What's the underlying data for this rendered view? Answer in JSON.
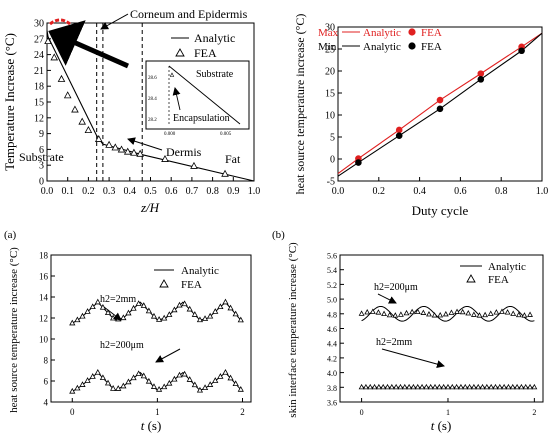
{
  "panel_labels": [
    "(a)",
    "(b)"
  ],
  "chart_data": [
    {
      "id": "tl",
      "type": "line",
      "xlabel": "z/H",
      "ylabel": "Temperature Increase (°C)",
      "xlim": [
        0.0,
        1.0
      ],
      "ylim": [
        0,
        30
      ],
      "xticks": [
        "0.0",
        "0.1",
        "0.2",
        "0.3",
        "0.4",
        "0.5",
        "0.6",
        "0.7",
        "0.8",
        "0.9",
        "1.0"
      ],
      "yticks": [
        "0",
        "3",
        "6",
        "9",
        "12",
        "15",
        "18",
        "21",
        "24",
        "27",
        "30"
      ],
      "legend": [
        "Analytic",
        "FEA"
      ],
      "legend_position": "top-right",
      "annotations": [
        "Corneum and Epidermis",
        "Substrate",
        "Dermis",
        "Fat",
        "Encapsulation",
        "Substrate"
      ],
      "region_boundaries": [
        0.24,
        0.27,
        0.46
      ],
      "inset": {
        "xticks": [
          "0.000",
          "0.005"
        ],
        "yticks": [
          "28.2",
          "28.4",
          "28.6"
        ]
      },
      "series": [
        {
          "name": "Analytic",
          "x": [
            0.0,
            0.005,
            0.24,
            0.27,
            0.46,
            1.0
          ],
          "y": [
            28.6,
            27.4,
            8.6,
            7.0,
            5.0,
            0
          ]
        },
        {
          "name": "FEA",
          "x": [
            0.005,
            0.035,
            0.07,
            0.1,
            0.135,
            0.17,
            0.2,
            0.25,
            0.3,
            0.33,
            0.36,
            0.39,
            0.42,
            0.45,
            0.57,
            0.71,
            0.86
          ],
          "y": [
            26.5,
            23.4,
            19.3,
            16.2,
            13.5,
            11.2,
            9.6,
            7.9,
            6.8,
            6.3,
            5.9,
            5.5,
            5.3,
            5.1,
            4.1,
            2.8,
            1.3
          ]
        }
      ]
    },
    {
      "id": "tr",
      "type": "line",
      "xlabel": "Duty cycle",
      "ylabel": "heat source temperature increase (°C)",
      "xlim": [
        0.0,
        1.0
      ],
      "ylim": [
        -5,
        30
      ],
      "xticks": [
        "0.0",
        "0.2",
        "0.4",
        "0.6",
        "0.8",
        "1.0"
      ],
      "yticks": [
        "-5",
        "0",
        "5",
        "10",
        "15",
        "20",
        "25",
        "30"
      ],
      "legend": [
        "Max",
        "Min",
        "Analytic",
        "Analytic",
        "FEA",
        "FEA"
      ],
      "legend_position": "top-left",
      "series": [
        {
          "name": "Max",
          "color": "#e02020",
          "x": [
            0.0,
            0.1,
            0.3,
            0.5,
            0.7,
            0.9,
            1.0
          ],
          "y": [
            -3.3,
            0.1,
            6.6,
            13.4,
            19.4,
            25.5,
            28.6
          ]
        },
        {
          "name": "Min",
          "color": "#000000",
          "x": [
            0.0,
            0.1,
            0.3,
            0.5,
            0.7,
            0.9,
            1.0
          ],
          "y": [
            -3.9,
            -0.8,
            5.3,
            11.4,
            18.1,
            24.6,
            28.6
          ]
        }
      ]
    },
    {
      "id": "bl",
      "type": "line",
      "xlabel": "t (s)",
      "ylabel": "heat source temperature increase (°C)",
      "xlim": [
        -0.25,
        2.1
      ],
      "ylim": [
        4,
        18
      ],
      "xticks": [
        "0",
        "1",
        "2"
      ],
      "yticks": [
        "4",
        "6",
        "8",
        "10",
        "12",
        "14",
        "16",
        "18"
      ],
      "legend": [
        "Analytic",
        "FEA"
      ],
      "legend_position": "top-right",
      "annotations": [
        "h2=2mm",
        "h2=200μm"
      ],
      "series": [
        {
          "name": "h2=2mm",
          "x": [
            0.0,
            0.1,
            0.3,
            0.5,
            0.6,
            0.8,
            1.0,
            1.1,
            1.3,
            1.5,
            1.6,
            1.8,
            2.0
          ],
          "y": [
            11.5,
            12.0,
            13.5,
            11.8,
            12.0,
            13.5,
            11.8,
            12.0,
            13.5,
            11.8,
            12.0,
            13.5,
            11.6
          ]
        },
        {
          "name": "h2=200μm",
          "x": [
            0.0,
            0.1,
            0.3,
            0.5,
            0.6,
            0.8,
            1.0,
            1.1,
            1.3,
            1.5,
            1.6,
            1.8,
            2.0
          ],
          "y": [
            5.0,
            5.5,
            6.8,
            5.1,
            5.5,
            6.8,
            5.1,
            5.5,
            6.8,
            5.1,
            5.5,
            6.8,
            5.0
          ]
        }
      ]
    },
    {
      "id": "br",
      "type": "line",
      "xlabel": "t (s)",
      "ylabel": "skin interface temperature increase (°C)",
      "xlim": [
        -0.25,
        2.1
      ],
      "ylim": [
        3.6,
        5.6
      ],
      "xticks": [
        "0",
        "1",
        "2"
      ],
      "yticks": [
        "3.6",
        "3.8",
        "4.0",
        "4.2",
        "4.4",
        "4.6",
        "4.8",
        "5.0",
        "5.2",
        "5.4",
        "5.6"
      ],
      "legend": [
        "Analytic",
        "FEA"
      ],
      "legend_position": "top-right",
      "annotations": [
        "h2=200μm",
        "h2=2mm"
      ],
      "series": [
        {
          "name": "h2=200μm",
          "mean": 4.8,
          "amplitude": 0.1,
          "period_s": 0.5
        },
        {
          "name": "h2=2mm",
          "mean": 3.8,
          "amplitude": 0.0
        }
      ]
    }
  ]
}
